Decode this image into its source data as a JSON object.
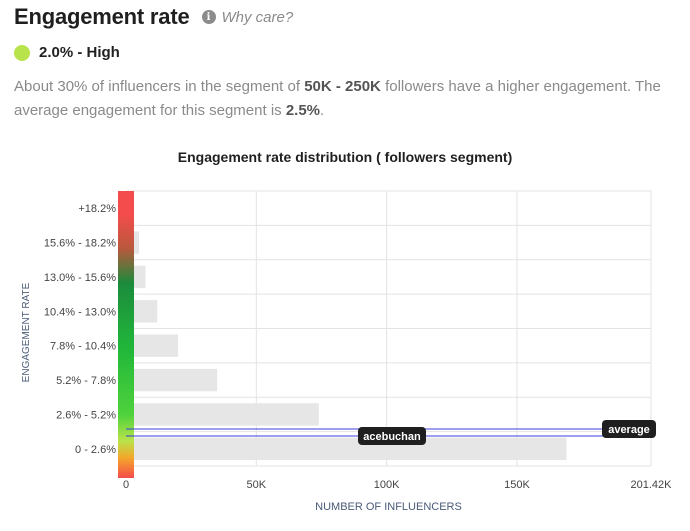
{
  "header": {
    "title": "Engagement rate",
    "info_icon": "info-icon",
    "why_link": "Why care?"
  },
  "level": {
    "label": "2.0% - High",
    "color": "#b9e34a"
  },
  "description": {
    "p1": "About 30% of influencers in the segment of ",
    "segment": "50K - 250K",
    "p2": " followers have a higher engagement. The average engagement for this segment is ",
    "avg": "2.5%",
    "p3": "."
  },
  "chart_data": {
    "type": "bar",
    "orientation": "horizontal",
    "title": "Engagement rate distribution ( followers segment)",
    "xlabel": "NUMBER OF INFLUENCERS",
    "ylabel": "ENGAGEMENT RATE",
    "categories": [
      "+18.2%",
      "15.6% - 18.2%",
      "13.0% - 15.6%",
      "10.4% - 13.0%",
      "7.8% - 10.4%",
      "5.2% - 7.8%",
      "2.6% - 5.2%",
      "0 - 2.6%"
    ],
    "values": [
      0,
      5000,
      7500,
      12000,
      20000,
      35000,
      74000,
      169000
    ],
    "xlim": [
      0,
      201420
    ],
    "xticks": [
      0,
      50000,
      100000,
      150000,
      201420
    ],
    "xtick_labels": [
      "0",
      "50K",
      "100K",
      "150K",
      "201.42K"
    ],
    "markers": [
      {
        "label": "average",
        "engagement": 2.5
      },
      {
        "label": "acebuchan",
        "engagement": 2.0
      }
    ],
    "grid": true,
    "bar_color": "#e6e6e6",
    "marker_color": "#3c3ce0"
  }
}
